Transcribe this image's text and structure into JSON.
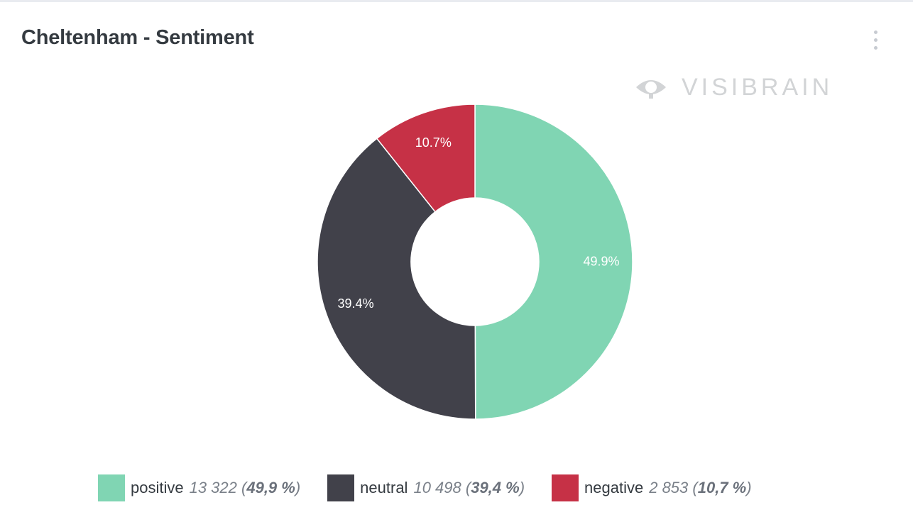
{
  "widget": {
    "title": "Cheltenham - Sentiment",
    "menu_icon": "more-vertical-icon"
  },
  "watermark": {
    "text": "VISIBRAIN",
    "icon": "eye-icon",
    "color": "#d2d4d6"
  },
  "chart_data": {
    "type": "pie",
    "subtype": "donut",
    "title": "Cheltenham - Sentiment",
    "slices": [
      {
        "name": "positive",
        "count": 13322,
        "percent": 49.9,
        "label": "49.9%",
        "color": "#80d5b3"
      },
      {
        "name": "neutral",
        "count": 10498,
        "percent": 39.4,
        "label": "39.4%",
        "color": "#41414a"
      },
      {
        "name": "negative",
        "count": 2853,
        "percent": 10.7,
        "label": "10.7%",
        "color": "#c63146"
      }
    ],
    "legend_placement": "bottom"
  },
  "legend": {
    "items": [
      {
        "name": "positive",
        "count": "13 322",
        "percent": "49,9 %",
        "color": "#80d5b3"
      },
      {
        "name": "neutral",
        "count": "10 498",
        "percent": "39,4 %",
        "color": "#41414a"
      },
      {
        "name": "negative",
        "count": "2 853",
        "percent": "10,7 %",
        "color": "#c63146"
      }
    ]
  }
}
